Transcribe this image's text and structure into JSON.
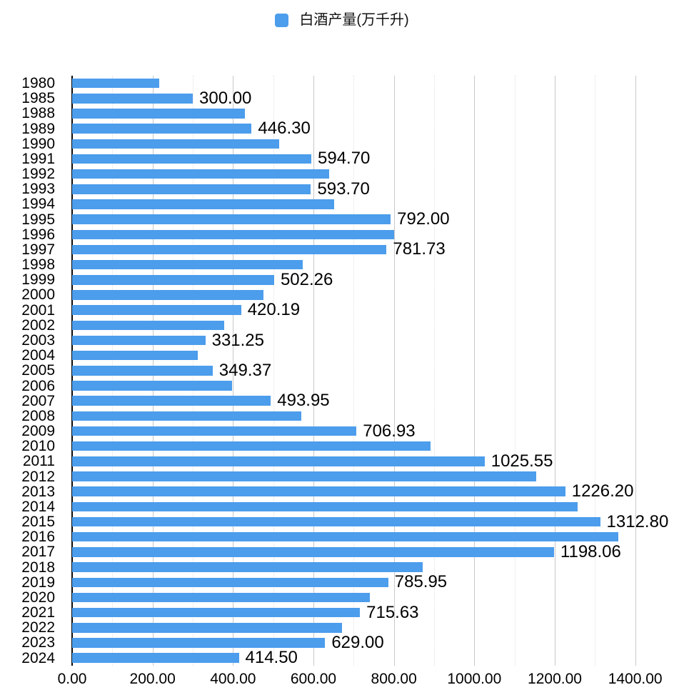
{
  "legend": {
    "label": "白酒产量(万千升)",
    "swatch_color": "#4C9DEC"
  },
  "colors": {
    "bar": "#4C9DEC",
    "axis_line": "#0a0a0a",
    "major_grid": "#c9c9c9",
    "minor_grid": "#e2e2e2",
    "text": "#000000"
  },
  "chart_data": {
    "type": "bar",
    "orientation": "horizontal",
    "title": "白酒产量(万千升)",
    "unit": "万千升",
    "xlim": [
      0,
      1500
    ],
    "grid": {
      "minor_step": 100,
      "major_step": 200,
      "grid_on": true
    },
    "legend_position": "top-center",
    "x_ticks": [
      {
        "value": 0,
        "label": "0.00"
      },
      {
        "value": 200,
        "label": "200.00"
      },
      {
        "value": 400,
        "label": "400.00"
      },
      {
        "value": 600,
        "label": "600.00"
      },
      {
        "value": 800,
        "label": "800.00"
      },
      {
        "value": 1000,
        "label": "1000.00"
      },
      {
        "value": 1200,
        "label": "1200.00"
      },
      {
        "value": 1400,
        "label": "1400.00"
      }
    ],
    "rows": [
      {
        "year": "1980",
        "value": 215.79,
        "label": null
      },
      {
        "year": "1985",
        "value": 300.0,
        "label": "300.00"
      },
      {
        "year": "1988",
        "value": 430.0,
        "label": null
      },
      {
        "year": "1989",
        "value": 446.3,
        "label": "446.30"
      },
      {
        "year": "1990",
        "value": 513.91,
        "label": null
      },
      {
        "year": "1991",
        "value": 594.7,
        "label": "594.70"
      },
      {
        "year": "1992",
        "value": 639.0,
        "label": null
      },
      {
        "year": "1993",
        "value": 593.7,
        "label": "593.70"
      },
      {
        "year": "1994",
        "value": 651.29,
        "label": null
      },
      {
        "year": "1995",
        "value": 792.0,
        "label": "792.00"
      },
      {
        "year": "1996",
        "value": 801.3,
        "label": null
      },
      {
        "year": "1997",
        "value": 781.73,
        "label": "781.73"
      },
      {
        "year": "1998",
        "value": 573.38,
        "label": null
      },
      {
        "year": "1999",
        "value": 502.26,
        "label": "502.26"
      },
      {
        "year": "2000",
        "value": 476.11,
        "label": null
      },
      {
        "year": "2001",
        "value": 420.19,
        "label": "420.19"
      },
      {
        "year": "2002",
        "value": 378.47,
        "label": null
      },
      {
        "year": "2003",
        "value": 331.25,
        "label": "331.25"
      },
      {
        "year": "2004",
        "value": 311.7,
        "label": null
      },
      {
        "year": "2005",
        "value": 349.37,
        "label": "349.37"
      },
      {
        "year": "2006",
        "value": 397.08,
        "label": null
      },
      {
        "year": "2007",
        "value": 493.95,
        "label": "493.95"
      },
      {
        "year": "2008",
        "value": 569.34,
        "label": null
      },
      {
        "year": "2009",
        "value": 706.93,
        "label": "706.93"
      },
      {
        "year": "2010",
        "value": 890.83,
        "label": null
      },
      {
        "year": "2011",
        "value": 1025.55,
        "label": "1025.55"
      },
      {
        "year": "2012",
        "value": 1153.16,
        "label": null
      },
      {
        "year": "2013",
        "value": 1226.2,
        "label": "1226.20"
      },
      {
        "year": "2014",
        "value": 1257.13,
        "label": null
      },
      {
        "year": "2015",
        "value": 1312.8,
        "label": "1312.80"
      },
      {
        "year": "2016",
        "value": 1358.36,
        "label": null
      },
      {
        "year": "2017",
        "value": 1198.06,
        "label": "1198.06"
      },
      {
        "year": "2018",
        "value": 871.2,
        "label": null
      },
      {
        "year": "2019",
        "value": 785.95,
        "label": "785.95"
      },
      {
        "year": "2020",
        "value": 740.73,
        "label": null
      },
      {
        "year": "2021",
        "value": 715.63,
        "label": "715.63"
      },
      {
        "year": "2022",
        "value": 671.24,
        "label": null
      },
      {
        "year": "2023",
        "value": 629.0,
        "label": "629.00"
      },
      {
        "year": "2024",
        "value": 414.5,
        "label": "414.50"
      }
    ]
  }
}
